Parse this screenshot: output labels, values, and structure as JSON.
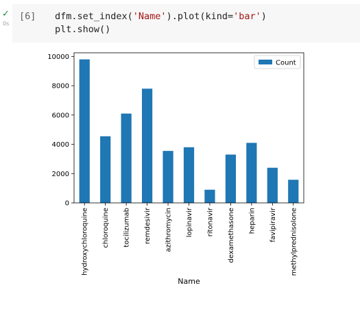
{
  "cell": {
    "execution_count": "[6]",
    "exec_time": "0s",
    "code_line1_a": "dfm.set_index(",
    "code_line1_s1": "'Name'",
    "code_line1_b": ").plot(kind=",
    "code_line1_s2": "'bar'",
    "code_line1_c": ")",
    "code_line2": "plt.show()"
  },
  "colors": {
    "bar": "#1f77b4",
    "success": "#1e8e3e",
    "code_bg": "#f7f7f7"
  },
  "chart_data": {
    "type": "bar",
    "categories": [
      "hydroxychloroquine",
      "chloroquine",
      "tocilizumab",
      "remdesivir",
      "azithromycin",
      "lopinavir",
      "ritonavir",
      "dexamethasone",
      "heparin",
      "favipiravir",
      "methylprednisolone"
    ],
    "series": [
      {
        "name": "Count",
        "values": [
          9800,
          4550,
          6100,
          7800,
          3550,
          3800,
          900,
          3300,
          4100,
          2400,
          1580
        ]
      }
    ],
    "xlabel": "Name",
    "ylabel": "",
    "ylim": [
      0,
      10250
    ],
    "yticks": [
      0,
      2000,
      4000,
      6000,
      8000,
      10000
    ],
    "legend": "top-right",
    "grid": false
  }
}
